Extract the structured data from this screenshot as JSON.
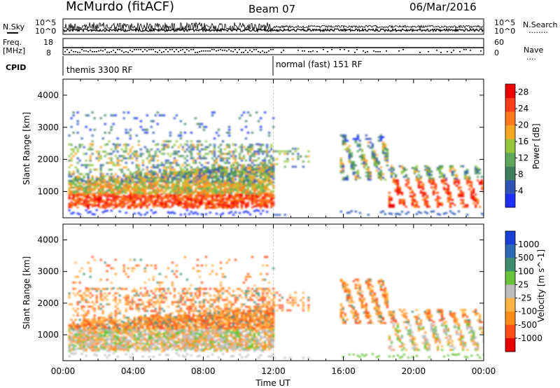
{
  "header": {
    "site": "McMurdo (fitACF)",
    "beam": "Beam 07",
    "date": "06/Mar/2016"
  },
  "labels": {
    "n_sky": "N.Sky",
    "n_search": "N.Search",
    "freq": "Freq.",
    "freq_unit": "[MHz]",
    "nave": "Nave",
    "cpid": "CPID",
    "n_dots": "........",
    "nave_dots": "....",
    "ytick_top": "10^5",
    "ytick_bottom": "10^0",
    "freq_tick_top": "18",
    "freq_tick_bottom": "8",
    "nave_tick_top": "60",
    "nave_tick_bottom": "0"
  },
  "cpid": {
    "mode1": "themis 3300 RF",
    "mode2": "normal (fast) 151 RF"
  },
  "colors": {
    "power": [
      "#1f2fff",
      "#2e55b5",
      "#3f7f5c",
      "#5da65b",
      "#94c43a",
      "#f5a623",
      "#ff7a1a",
      "#ff3d1a",
      "#ee0000"
    ],
    "velocity": [
      "#1a3fd6",
      "#2f68b5",
      "#3c8c6e",
      "#6ac23a",
      "#bdbdbd",
      "#ffb347",
      "#ff8c1a",
      "#ff4d1a",
      "#e60000"
    ]
  },
  "chart_data": [
    {
      "type": "heatmap",
      "name": "Power",
      "ylabel": "Slant Range [km]",
      "yticks": [
        1000,
        2000,
        3000,
        4000
      ],
      "ylim": [
        180,
        4500
      ],
      "xlim": [
        0,
        24
      ],
      "xticks": [
        "00:00",
        "04:00",
        "08:00",
        "12:00",
        "16:00",
        "20:00",
        "00:00"
      ],
      "colorbar": {
        "label": "Power [dB]",
        "ticks": [
          4,
          8,
          12,
          16,
          20,
          24,
          28
        ],
        "range": [
          0,
          30
        ]
      }
    },
    {
      "type": "heatmap",
      "name": "Velocity",
      "ylabel": "Slant Range [km]",
      "xlabel": "Time UT",
      "yticks": [
        1000,
        2000,
        3000,
        4000
      ],
      "ylim": [
        180,
        4500
      ],
      "xlim": [
        0,
        24
      ],
      "xticks": [
        "00:00",
        "04:00",
        "08:00",
        "12:00",
        "16:00",
        "20:00",
        "00:00"
      ],
      "colorbar": {
        "label": "Velocity [m s^-1]",
        "ticks": [
          1000,
          500,
          100,
          25,
          -25,
          -100,
          -500,
          -1000
        ]
      }
    }
  ]
}
